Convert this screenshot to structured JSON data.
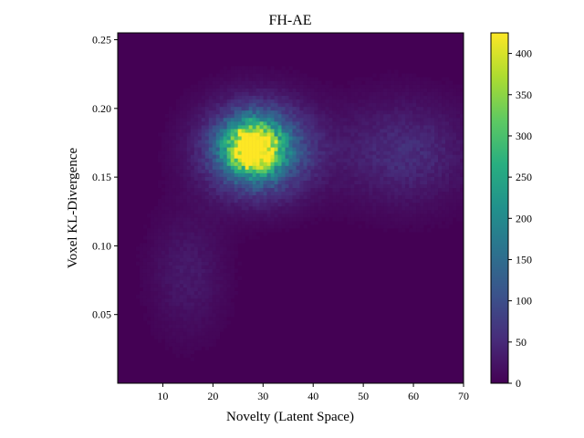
{
  "chart_data": {
    "type": "heatmap",
    "title": "FH-AE",
    "xlabel": "Novelty (Latent Space)",
    "ylabel": "Voxel KL-Divergence",
    "xlim": [
      1,
      70
    ],
    "ylim": [
      0.0,
      0.255
    ],
    "x_ticks": [
      10,
      20,
      30,
      40,
      50,
      60,
      70
    ],
    "y_ticks": [
      0.05,
      0.1,
      0.15,
      0.2,
      0.25
    ],
    "y_tick_labels": [
      "0.05",
      "0.10",
      "0.15",
      "0.20",
      "0.25"
    ],
    "colormap": "viridis",
    "background_value": 0,
    "colorbar": {
      "min": 0,
      "max": 425,
      "ticks": [
        0,
        50,
        100,
        150,
        200,
        250,
        300,
        350,
        400
      ]
    },
    "density_regions": [
      {
        "label": "peak",
        "x_center": 28,
        "y_center": 0.172,
        "x_spread": 3.5,
        "y_spread": 0.012,
        "count": 420
      },
      {
        "label": "core",
        "x_center": 29,
        "y_center": 0.17,
        "x_spread": 7,
        "y_spread": 0.022,
        "count": 200
      },
      {
        "label": "right-tail",
        "x_center": 58,
        "y_center": 0.168,
        "x_spread": 9,
        "y_spread": 0.025,
        "count": 55
      },
      {
        "label": "lower-left-tail",
        "x_center": 15,
        "y_center": 0.08,
        "x_spread": 5,
        "y_spread": 0.03,
        "count": 30
      }
    ]
  }
}
